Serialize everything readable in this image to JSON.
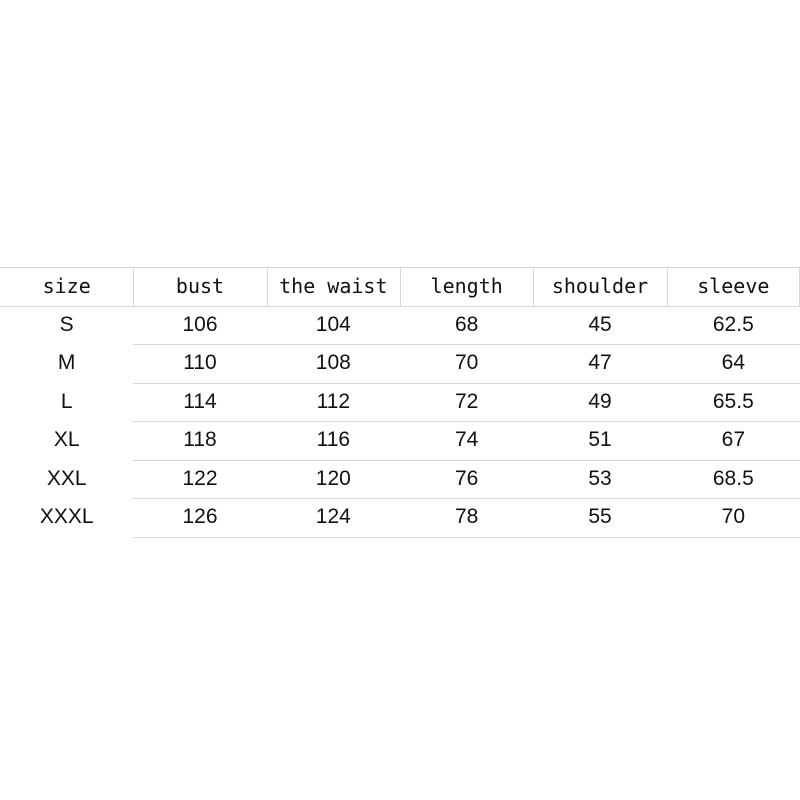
{
  "table": {
    "header": [
      "size",
      "bust",
      "the waist",
      "length",
      "shoulder",
      "sleeve"
    ],
    "rows": [
      [
        "S",
        106,
        104,
        68,
        45,
        62.5
      ],
      [
        "M",
        110,
        108,
        70,
        47,
        64
      ],
      [
        "L",
        114,
        112,
        72,
        49,
        65.5
      ],
      [
        "XL",
        118,
        116,
        74,
        51,
        67
      ],
      [
        "XXL",
        122,
        120,
        76,
        53,
        68.5
      ],
      [
        "XXXL",
        126,
        124,
        78,
        55,
        70
      ]
    ]
  }
}
